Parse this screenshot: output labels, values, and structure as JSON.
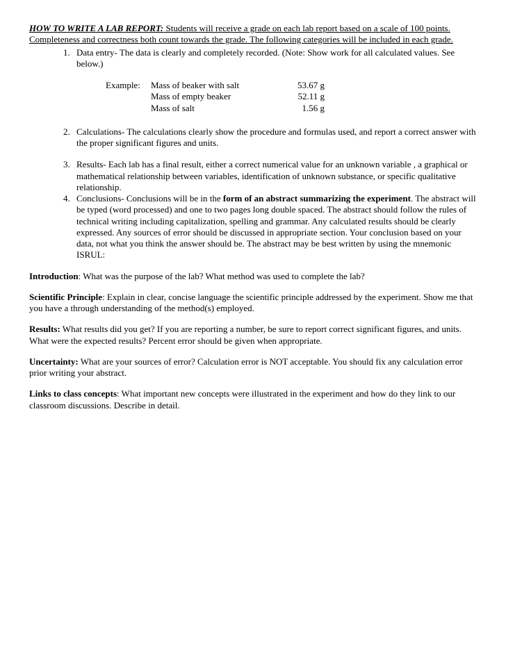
{
  "intro": {
    "title": "HOW TO WRITE A LAB REPORT:",
    "body": "Students will receive a grade on each lab report based on a scale of 100 points.  Completeness and correctness both count towards the grade.  The following categories will be included in each grade."
  },
  "list": {
    "item1": "Data entry-  The data is clearly and completely recorded. (Note: Show work for all calculated values. See below.)",
    "example": {
      "label": "Example:",
      "rows": [
        {
          "desc": "Mass of beaker with salt",
          "val": "53.67 g"
        },
        {
          "desc": "Mass of empty beaker",
          "val": "52.11 g"
        },
        {
          "desc": "Mass of salt",
          "val": "1.56 g"
        }
      ]
    },
    "item2": "Calculations- The calculations clearly show the procedure and formulas used, and report a correct answer with the proper significant figures and units.",
    "item3": "Results- Each lab has a final result, either a correct numerical value for an unknown variable , a graphical or mathematical relationship between variables, identification of unknown substance, or specific qualitative relationship.",
    "item4_a": "Conclusions- Conclusions will be in the ",
    "item4_bold": "form of an abstract summarizing the experiment",
    "item4_b": ".  The abstract will be typed (word processed) and one to two pages long double spaced.  The abstract should follow the rules of technical writing including capitalization, spelling and grammar.  Any calculated results should be clearly expressed. Any sources of error should be discussed in appropriate section. Your conclusion based on your data, not what you think the answer should be. The abstract may be best written by using the mnemonic ISRUL:"
  },
  "sections": {
    "introduction": {
      "label": "Introduction",
      "text": ": What was the purpose of the lab?  What method was used to complete the lab?"
    },
    "principle": {
      "label": "Scientific Principle",
      "text": ": Explain in clear, concise language the scientific principle addressed by the experiment. Show me that you have a through understanding of the method(s) employed."
    },
    "results": {
      "label": "Results:",
      "text": " What results did you get? If you are reporting a number, be sure to report correct significant figures, and units.  What were the expected results? Percent error should be given when appropriate."
    },
    "uncertainty": {
      "label": "Uncertainty:",
      "text": " What are your sources of error? Calculation error is NOT acceptable.  You should fix any calculation error prior writing your abstract."
    },
    "links": {
      "label": "Links to class concepts",
      "text": ": What important new concepts were illustrated in the experiment and how do they link to our classroom discussions. Describe in detail."
    }
  }
}
